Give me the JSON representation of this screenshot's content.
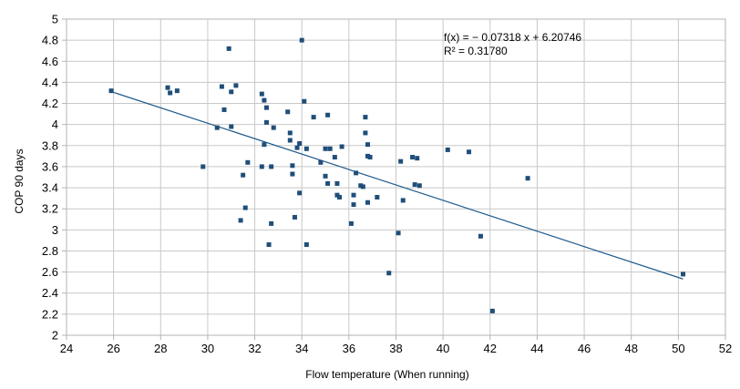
{
  "chart_data": {
    "type": "scatter",
    "xlabel": "Flow temperature (When running)",
    "ylabel": "COP 90 days",
    "xlim": [
      24,
      52
    ],
    "ylim": [
      2,
      5
    ],
    "x_ticks": [
      "24",
      "26",
      "28",
      "30",
      "32",
      "34",
      "36",
      "38",
      "40",
      "42",
      "44",
      "46",
      "48",
      "50",
      "52"
    ],
    "y_ticks": [
      "2",
      "2.2",
      "2.4",
      "2.6",
      "2.8",
      "3",
      "3.2",
      "3.4",
      "3.6",
      "3.8",
      "4",
      "4.2",
      "4.4",
      "4.6",
      "4.8",
      "5"
    ],
    "grid": true,
    "legend": "none",
    "marker_color": "#1f4e79",
    "trendline": {
      "type": "linear",
      "slope": -0.07318,
      "intercept": 6.20746,
      "color": "#1f5a8c",
      "equation_label": "f(x) = − 0.07318 x + 6.20746",
      "r2_label": "R² = 0.31780"
    },
    "points": [
      [
        25.9,
        4.32
      ],
      [
        28.3,
        4.35
      ],
      [
        28.4,
        4.3
      ],
      [
        28.7,
        4.32
      ],
      [
        29.8,
        3.6
      ],
      [
        30.4,
        3.97
      ],
      [
        30.6,
        4.36
      ],
      [
        30.7,
        4.14
      ],
      [
        30.9,
        4.72
      ],
      [
        31.0,
        4.31
      ],
      [
        31.0,
        3.98
      ],
      [
        31.2,
        4.37
      ],
      [
        31.4,
        3.09
      ],
      [
        31.5,
        3.52
      ],
      [
        31.6,
        3.21
      ],
      [
        31.7,
        3.64
      ],
      [
        32.3,
        4.29
      ],
      [
        32.3,
        3.6
      ],
      [
        32.4,
        3.81
      ],
      [
        32.4,
        4.23
      ],
      [
        32.5,
        4.16
      ],
      [
        32.5,
        4.02
      ],
      [
        32.6,
        2.86
      ],
      [
        32.7,
        3.6
      ],
      [
        32.7,
        3.06
      ],
      [
        32.8,
        3.97
      ],
      [
        33.4,
        4.12
      ],
      [
        33.5,
        3.92
      ],
      [
        33.5,
        3.85
      ],
      [
        33.6,
        3.61
      ],
      [
        33.6,
        3.53
      ],
      [
        33.7,
        3.12
      ],
      [
        33.8,
        3.78
      ],
      [
        33.9,
        3.35
      ],
      [
        33.9,
        3.82
      ],
      [
        34.0,
        4.8
      ],
      [
        34.1,
        4.22
      ],
      [
        34.2,
        2.86
      ],
      [
        34.2,
        3.77
      ],
      [
        34.5,
        4.07
      ],
      [
        34.8,
        3.64
      ],
      [
        35.0,
        3.77
      ],
      [
        35.0,
        3.51
      ],
      [
        35.1,
        3.44
      ],
      [
        35.1,
        4.09
      ],
      [
        35.2,
        3.77
      ],
      [
        35.4,
        3.69
      ],
      [
        35.5,
        3.33
      ],
      [
        35.5,
        3.44
      ],
      [
        35.6,
        3.31
      ],
      [
        35.7,
        3.79
      ],
      [
        36.1,
        3.06
      ],
      [
        36.2,
        3.33
      ],
      [
        36.2,
        3.24
      ],
      [
        36.3,
        3.54
      ],
      [
        36.5,
        3.42
      ],
      [
        36.6,
        3.41
      ],
      [
        36.7,
        3.92
      ],
      [
        36.7,
        4.07
      ],
      [
        36.8,
        3.26
      ],
      [
        36.8,
        3.7
      ],
      [
        36.8,
        3.81
      ],
      [
        36.9,
        3.69
      ],
      [
        37.2,
        3.31
      ],
      [
        37.7,
        2.59
      ],
      [
        38.1,
        2.97
      ],
      [
        38.2,
        3.65
      ],
      [
        38.3,
        3.28
      ],
      [
        38.7,
        3.69
      ],
      [
        38.8,
        3.43
      ],
      [
        38.9,
        3.68
      ],
      [
        39.0,
        3.42
      ],
      [
        40.2,
        3.76
      ],
      [
        41.1,
        3.74
      ],
      [
        41.6,
        2.94
      ],
      [
        42.1,
        2.23
      ],
      [
        43.6,
        3.49
      ],
      [
        50.2,
        2.58
      ]
    ]
  }
}
